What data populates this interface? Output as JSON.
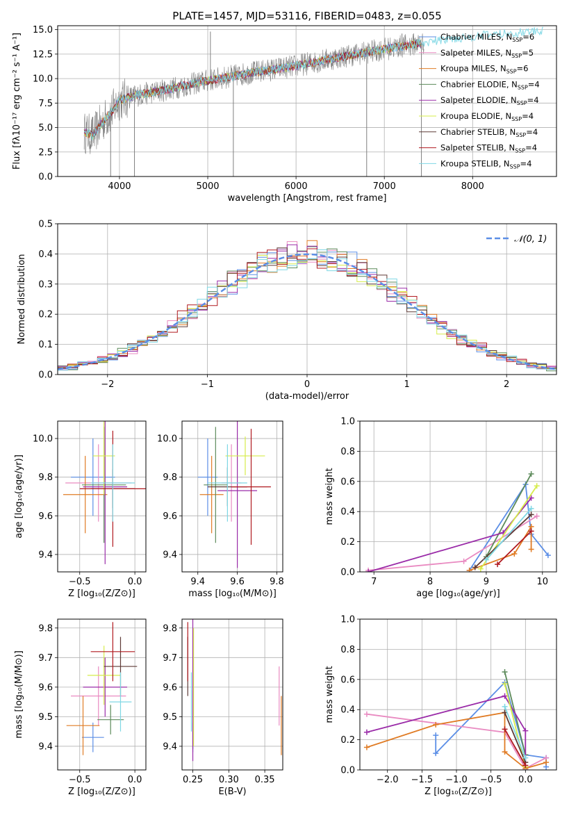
{
  "palette": {
    "Chabrier MILES": "#5b8ee6",
    "Salpeter MILES": "#e98ac1",
    "Kroupa MILES": "#e07b24",
    "Chabrier ELODIE": "#5c8a5a",
    "Salpeter ELODIE": "#9a2ba8",
    "Kroupa ELODIE": "#d6ec4a",
    "Chabrier STELIB": "#5d3a36",
    "Salpeter STELIB": "#b0191f",
    "Kroupa STELIB": "#7fd7e4",
    "data": "#7f7f7f",
    "normal": "#5b8ee6"
  },
  "chart_data": [
    {
      "id": "spectrum",
      "type": "line",
      "title": "PLATE=1457, MJD=53116, FIBERID=0483, z=0.055",
      "xlabel": "wavelength [Angstrom, rest frame]",
      "ylabel": "Flux [fλ10⁻¹⁷ erg cm⁻² s⁻¹ A⁻¹]",
      "xlim": [
        3300,
        8950
      ],
      "ylim": [
        0,
        15.4
      ],
      "xticks": [
        "4000",
        "5000",
        "6000",
        "7000",
        "8000"
      ],
      "yticks": [
        "0.0",
        "2.5",
        "5.0",
        "7.5",
        "10.0",
        "12.5",
        "15.0"
      ],
      "legend_position": "right",
      "legend": [
        {
          "name": "Chabrier MILES",
          "sub": "6"
        },
        {
          "name": "Salpeter MILES",
          "sub": "5"
        },
        {
          "name": "Kroupa MILES",
          "sub": "6"
        },
        {
          "name": "Chabrier ELODIE",
          "sub": "4"
        },
        {
          "name": "Salpeter ELODIE",
          "sub": "4"
        },
        {
          "name": "Kroupa ELODIE",
          "sub": "4"
        },
        {
          "name": "Chabrier STELIB",
          "sub": "4"
        },
        {
          "name": "Salpeter STELIB",
          "sub": "4"
        },
        {
          "name": "Kroupa STELIB",
          "sub": "4"
        }
      ],
      "continuum": [
        [
          3600,
          4.5
        ],
        [
          3700,
          4.2
        ],
        [
          3800,
          5.5
        ],
        [
          3900,
          6.5
        ],
        [
          4000,
          7.8
        ],
        [
          4200,
          8.3
        ],
        [
          4500,
          8.8
        ],
        [
          5000,
          9.8
        ],
        [
          5500,
          10.6
        ],
        [
          6000,
          11.3
        ],
        [
          6500,
          12.2
        ],
        [
          7000,
          13.0
        ],
        [
          7400,
          13.6
        ],
        [
          7800,
          14.1
        ],
        [
          8200,
          14.5
        ],
        [
          8700,
          14.8
        ]
      ],
      "spikes": [
        [
          3900,
          0
        ],
        [
          4170,
          0
        ],
        [
          5290,
          0
        ],
        [
          6800,
          0
        ],
        [
          7420,
          0
        ],
        [
          5030,
          14.8
        ],
        [
          7200,
          14.6
        ]
      ]
    },
    {
      "id": "residuals",
      "type": "line",
      "xlabel": "(data-model)/error",
      "ylabel": "Normed distribution",
      "xlim": [
        -2.5,
        2.5
      ],
      "ylim": [
        0,
        0.5
      ],
      "xticks": [
        "−2",
        "−1",
        "0",
        "1",
        "2"
      ],
      "yticks": [
        "0.0",
        "0.1",
        "0.2",
        "0.3",
        "0.4",
        "0.5"
      ],
      "legend_label": "𝒩(0, 1)",
      "legend_position": "top-right",
      "bin_width": 0.1,
      "normal": {
        "mean": 0,
        "sigma": 1
      }
    },
    {
      "id": "Z-age",
      "type": "scatter",
      "xlabel": "Z [log₁₀(Z/Z⊙)]",
      "ylabel": "age  [log₁₀(age/yr)]",
      "xlim": [
        -0.7,
        0.1
      ],
      "ylim": [
        9.31,
        10.09
      ],
      "xticks": [
        "−0.5",
        "0.0"
      ],
      "yticks": [
        "9.4",
        "9.6",
        "9.8",
        "10.0"
      ],
      "points": [
        {
          "series": "Chabrier MILES",
          "x": -0.38,
          "y": 9.8,
          "xerr": 0.2,
          "yerr": 0.2
        },
        {
          "series": "Salpeter MILES",
          "x": -0.33,
          "y": 9.77,
          "xerr": 0.3,
          "yerr": 0.2
        },
        {
          "series": "Kroupa MILES",
          "x": -0.45,
          "y": 9.71,
          "xerr": 0.2,
          "yerr": 0.2
        },
        {
          "series": "Chabrier ELODIE",
          "x": -0.28,
          "y": 9.76,
          "xerr": 0.2,
          "yerr": 0.3
        },
        {
          "series": "Salpeter ELODIE",
          "x": -0.27,
          "y": 9.75,
          "xerr": 0.2,
          "yerr": 0.4
        },
        {
          "series": "Kroupa ELODIE",
          "x": -0.28,
          "y": 9.91,
          "xerr": 0.1,
          "yerr": 0.2
        },
        {
          "series": "Chabrier STELIB",
          "x": -0.2,
          "y": 9.74,
          "xerr": 0.2,
          "yerr": 0.1
        },
        {
          "series": "Salpeter STELIB",
          "x": -0.2,
          "y": 9.74,
          "xerr": 0.3,
          "yerr": 0.3
        },
        {
          "series": "Kroupa STELIB",
          "x": -0.2,
          "y": 9.77,
          "xerr": 0.2,
          "yerr": 0.2
        }
      ]
    },
    {
      "id": "mass-age",
      "type": "scatter",
      "xlabel": "mass [log₁₀(M/M⊙)]",
      "ylabel": "",
      "xlim": [
        9.32,
        9.83
      ],
      "ylim": [
        9.31,
        10.09
      ],
      "xticks": [
        "9.4",
        "9.6",
        "9.8"
      ],
      "yticks": [
        "9.4",
        "9.6",
        "9.8",
        "10.0"
      ],
      "points": [
        {
          "series": "Chabrier MILES",
          "x": 9.45,
          "y": 9.8,
          "xerr": 0.05,
          "yerr": 0.2
        },
        {
          "series": "Salpeter MILES",
          "x": 9.57,
          "y": 9.77,
          "xerr": 0.05,
          "yerr": 0.2
        },
        {
          "series": "Kroupa MILES",
          "x": 9.47,
          "y": 9.71,
          "xerr": 0.06,
          "yerr": 0.2
        },
        {
          "series": "Chabrier ELODIE",
          "x": 9.49,
          "y": 9.76,
          "xerr": 0.06,
          "yerr": 0.3
        },
        {
          "series": "Salpeter ELODIE",
          "x": 9.6,
          "y": 9.73,
          "xerr": 0.1,
          "yerr": 0.4
        },
        {
          "series": "Kroupa ELODIE",
          "x": 9.64,
          "y": 9.91,
          "xerr": 0.1,
          "yerr": 0.1
        },
        {
          "series": "Chabrier STELIB",
          "x": 9.55,
          "y": 9.75,
          "xerr": 0.1,
          "yerr": 0.1
        },
        {
          "series": "Salpeter STELIB",
          "x": 9.67,
          "y": 9.75,
          "xerr": 0.1,
          "yerr": 0.3
        },
        {
          "series": "Kroupa STELIB",
          "x": 9.55,
          "y": 9.77,
          "xerr": 0.1,
          "yerr": 0.2
        }
      ]
    },
    {
      "id": "age-weight",
      "type": "line",
      "xlabel": "age  [log₁₀(age/yr)]",
      "ylabel": "mass weight",
      "xlim": [
        6.75,
        10.25
      ],
      "ylim": [
        0,
        1
      ],
      "xticks": [
        "7",
        "8",
        "9",
        "10"
      ],
      "yticks": [
        "0.0",
        "0.2",
        "0.4",
        "0.6",
        "0.8",
        "1.0"
      ],
      "series": [
        {
          "name": "Chabrier MILES",
          "points": [
            [
              8.7,
              0.01
            ],
            [
              9.7,
              0.58
            ],
            [
              9.8,
              0.25
            ],
            [
              10.1,
              0.11
            ]
          ]
        },
        {
          "name": "Salpeter MILES",
          "points": [
            [
              6.9,
              0.01
            ],
            [
              8.6,
              0.07
            ],
            [
              9.9,
              0.37
            ]
          ]
        },
        {
          "name": "Kroupa MILES",
          "points": [
            [
              8.7,
              0.01
            ],
            [
              9.5,
              0.12
            ],
            [
              9.8,
              0.3
            ],
            [
              9.8,
              0.15
            ]
          ]
        },
        {
          "name": "Chabrier ELODIE",
          "points": [
            [
              9.0,
              0.1
            ],
            [
              9.8,
              0.65
            ]
          ]
        },
        {
          "name": "Salpeter ELODIE",
          "points": [
            [
              6.9,
              0.0
            ],
            [
              9.3,
              0.26
            ],
            [
              9.8,
              0.49
            ]
          ]
        },
        {
          "name": "Kroupa ELODIE",
          "points": [
            [
              8.9,
              0.02
            ],
            [
              9.9,
              0.57
            ]
          ]
        },
        {
          "name": "Chabrier STELIB",
          "points": [
            [
              8.8,
              0.03
            ],
            [
              9.8,
              0.38
            ]
          ]
        },
        {
          "name": "Salpeter STELIB",
          "points": [
            [
              9.2,
              0.05
            ],
            [
              9.8,
              0.27
            ]
          ]
        },
        {
          "name": "Kroupa STELIB",
          "points": [
            [
              9.0,
              0.08
            ],
            [
              9.8,
              0.42
            ]
          ]
        }
      ]
    },
    {
      "id": "Z-mass",
      "type": "scatter",
      "xlabel": "Z [log₁₀(Z/Z⊙)]",
      "ylabel": "mass [log₁₀(M/M⊙)]",
      "xlim": [
        -0.7,
        0.1
      ],
      "ylim": [
        9.32,
        9.83
      ],
      "xticks": [
        "−0.5",
        "0.0"
      ],
      "yticks": [
        "9.4",
        "9.5",
        "9.6",
        "9.7",
        "9.8"
      ],
      "points": [
        {
          "series": "Chabrier MILES",
          "x": -0.38,
          "y": 9.43,
          "xerr": 0.1,
          "yerr": 0.05
        },
        {
          "series": "Salpeter MILES",
          "x": -0.33,
          "y": 9.57,
          "xerr": 0.25,
          "yerr": 0.1
        },
        {
          "series": "Kroupa MILES",
          "x": -0.47,
          "y": 9.47,
          "xerr": 0.15,
          "yerr": 0.1
        },
        {
          "series": "Chabrier ELODIE",
          "x": -0.22,
          "y": 9.49,
          "xerr": 0.12,
          "yerr": 0.05
        },
        {
          "series": "Salpeter ELODIE",
          "x": -0.27,
          "y": 9.6,
          "xerr": 0.2,
          "yerr": 0.1
        },
        {
          "series": "Kroupa ELODIE",
          "x": -0.28,
          "y": 9.64,
          "xerr": 0.15,
          "yerr": 0.1
        },
        {
          "series": "Chabrier STELIB",
          "x": -0.13,
          "y": 9.67,
          "xerr": 0.15,
          "yerr": 0.1
        },
        {
          "series": "Salpeter STELIB",
          "x": -0.2,
          "y": 9.72,
          "xerr": 0.2,
          "yerr": 0.1
        },
        {
          "series": "Kroupa STELIB",
          "x": -0.13,
          "y": 9.55,
          "xerr": 0.1,
          "yerr": 0.1
        }
      ]
    },
    {
      "id": "ebv-mass",
      "type": "scatter",
      "xlabel": "E(B-V)",
      "ylabel": "",
      "xlim": [
        0.235,
        0.375
      ],
      "ylim": [
        9.32,
        9.83
      ],
      "xticks": [
        "0.25",
        "0.30",
        "0.35"
      ],
      "yticks": [
        "9.4",
        "9.5",
        "9.6",
        "9.7",
        "9.8"
      ],
      "points": [
        {
          "series": "Chabrier MILES",
          "x": 0.25,
          "y": 9.43,
          "xerr": 0,
          "yerr": 0.05
        },
        {
          "series": "Salpeter MILES",
          "x": 0.37,
          "y": 9.57,
          "xerr": 0,
          "yerr": 0.1
        },
        {
          "series": "Kroupa MILES",
          "x": 0.373,
          "y": 9.47,
          "xerr": 0,
          "yerr": 0.1
        },
        {
          "series": "Chabrier ELODIE",
          "x": 0.25,
          "y": 9.49,
          "xerr": 0,
          "yerr": 0.1
        },
        {
          "series": "Salpeter ELODIE",
          "x": 0.25,
          "y": 9.6,
          "xerr": 0,
          "yerr": 0.25
        },
        {
          "series": "Kroupa ELODIE",
          "x": 0.251,
          "y": 9.6,
          "xerr": 0,
          "yerr": 0.2
        },
        {
          "series": "Chabrier STELIB",
          "x": 0.243,
          "y": 9.67,
          "xerr": 0,
          "yerr": 0.1
        },
        {
          "series": "Salpeter STELIB",
          "x": 0.243,
          "y": 9.72,
          "xerr": 0,
          "yerr": 0.1
        },
        {
          "series": "Kroupa STELIB",
          "x": 0.248,
          "y": 9.55,
          "xerr": 0,
          "yerr": 0.1
        }
      ]
    },
    {
      "id": "Z-weight",
      "type": "line",
      "xlabel": "Z [log₁₀(Z/Z⊙)]",
      "ylabel": "mass weight",
      "xlim": [
        -2.4,
        0.45
      ],
      "ylim": [
        0,
        1
      ],
      "xticks": [
        "−2.0",
        "−1.5",
        "−1.0",
        "−0.5",
        "0.0"
      ],
      "yticks": [
        "0.0",
        "0.2",
        "0.4",
        "0.6",
        "0.8",
        "1.0"
      ],
      "series": [
        {
          "name": "Chabrier MILES",
          "points": [
            [
              -1.3,
              0.23
            ],
            [
              -1.3,
              0.11
            ],
            [
              -0.3,
              0.58
            ],
            [
              0.0,
              0.1
            ],
            [
              0.3,
              0.08
            ],
            [
              0.3,
              0.02
            ]
          ]
        },
        {
          "name": "Salpeter MILES",
          "points": [
            [
              -2.3,
              0.37
            ],
            [
              -0.3,
              0.25
            ],
            [
              0.0,
              0.01
            ],
            [
              0.3,
              0.08
            ]
          ]
        },
        {
          "name": "Kroupa MILES",
          "points": [
            [
              -2.3,
              0.15
            ],
            [
              -1.3,
              0.3
            ],
            [
              -0.3,
              0.38
            ],
            [
              -0.3,
              0.12
            ],
            [
              0.0,
              0.01
            ],
            [
              0.3,
              0.05
            ]
          ]
        },
        {
          "name": "Chabrier ELODIE",
          "points": [
            [
              -0.3,
              0.65
            ],
            [
              0.0,
              0.1
            ]
          ]
        },
        {
          "name": "Salpeter ELODIE",
          "points": [
            [
              -2.3,
              0.25
            ],
            [
              -0.3,
              0.49
            ],
            [
              0.0,
              0.26
            ],
            [
              0.0,
              0.0
            ]
          ]
        },
        {
          "name": "Kroupa ELODIE",
          "points": [
            [
              -0.3,
              0.57
            ],
            [
              0.0,
              0.02
            ]
          ]
        },
        {
          "name": "Chabrier STELIB",
          "points": [
            [
              -0.3,
              0.38
            ],
            [
              0.0,
              0.05
            ]
          ]
        },
        {
          "name": "Salpeter STELIB",
          "points": [
            [
              -0.3,
              0.27
            ],
            [
              0.0,
              0.03
            ]
          ]
        },
        {
          "name": "Kroupa STELIB",
          "points": [
            [
              -0.3,
              0.42
            ],
            [
              0.0,
              0.08
            ]
          ]
        }
      ]
    }
  ]
}
